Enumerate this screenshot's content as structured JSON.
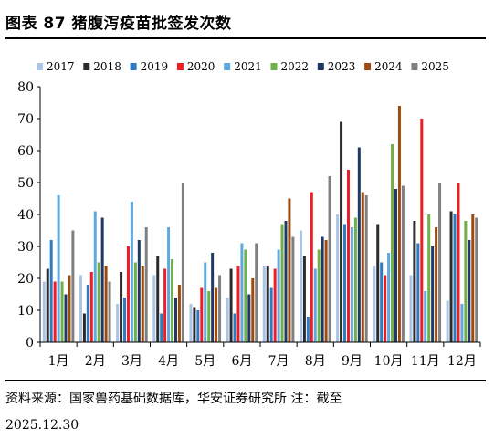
{
  "figure": {
    "title": "图表 87 猪腹泻疫苗批签发次数",
    "source": "资料来源：国家兽药基础数据库，华安证券研究所 注：截至",
    "date": "2025.12.30"
  },
  "chart_data": {
    "type": "bar",
    "title": "",
    "xlabel": "",
    "ylabel": "",
    "ylim": [
      0,
      80
    ],
    "yticks": [
      0,
      10,
      20,
      30,
      40,
      50,
      60,
      70,
      80
    ],
    "grid": false,
    "legend_position": "top",
    "categories": [
      "1月",
      "2月",
      "3月",
      "4月",
      "5月",
      "6月",
      "7月",
      "8月",
      "9月",
      "10月",
      "11月",
      "12月"
    ],
    "series": [
      {
        "name": "2017",
        "color": "#a9c4e6",
        "values": [
          19,
          21,
          12,
          21,
          12,
          14,
          24,
          35,
          40,
          24,
          21,
          13
        ]
      },
      {
        "name": "2018",
        "color": "#2b2b2b",
        "values": [
          23,
          9,
          22,
          27,
          11,
          23,
          24,
          27,
          69,
          37,
          38,
          41
        ]
      },
      {
        "name": "2019",
        "color": "#2e7bc4",
        "values": [
          32,
          18,
          14,
          9,
          10,
          9,
          17,
          8,
          37,
          25,
          31,
          40
        ]
      },
      {
        "name": "2020",
        "color": "#ee1c25",
        "values": [
          19,
          22,
          30,
          23,
          17,
          24,
          23,
          47,
          54,
          21,
          70,
          50
        ]
      },
      {
        "name": "2021",
        "color": "#5fa8e0",
        "values": [
          46,
          41,
          44,
          36,
          25,
          31,
          29,
          23,
          36,
          28,
          16,
          12
        ]
      },
      {
        "name": "2022",
        "color": "#70b04a",
        "values": [
          19,
          25,
          25,
          26,
          16,
          29,
          37,
          29,
          39,
          62,
          40,
          38
        ]
      },
      {
        "name": "2023",
        "color": "#1f3864",
        "values": [
          15,
          39,
          32,
          14,
          28,
          15,
          38,
          33,
          61,
          48,
          30,
          32
        ]
      },
      {
        "name": "2024",
        "color": "#9e4a0d",
        "values": [
          21,
          24,
          24,
          18,
          17,
          20,
          45,
          32,
          47,
          74,
          36,
          40
        ]
      },
      {
        "name": "2025",
        "color": "#808080",
        "values": [
          35,
          19,
          36,
          50,
          21,
          31,
          33,
          52,
          46,
          49,
          50,
          39
        ]
      }
    ]
  }
}
